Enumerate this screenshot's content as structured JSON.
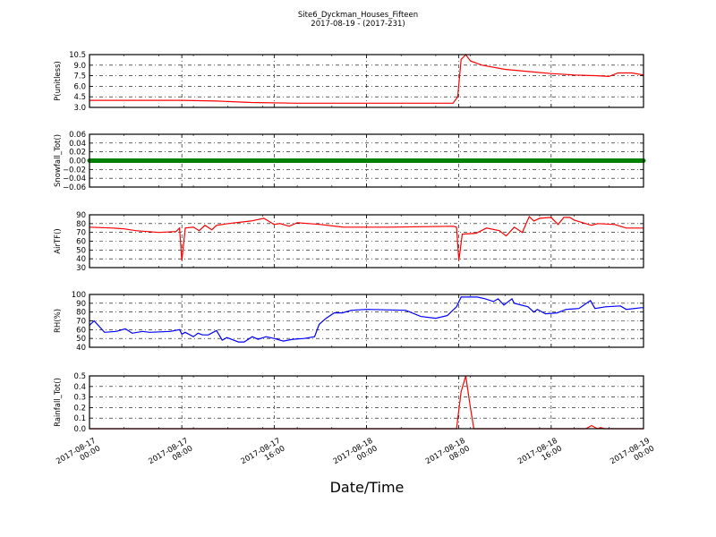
{
  "title": "Site6_Dyckman_Houses_Fifteen",
  "subtitle": "2017-08-19 - (2017-231)",
  "xlabel": "Date/Time",
  "x_range": [
    "2017-08-17 00:00",
    "2017-08-19 00:00"
  ],
  "x_ticks": [
    {
      "date": "2017-08-17 00:00",
      "label": [
        "2017-08-17",
        "00:00"
      ]
    },
    {
      "date": "2017-08-17 08:00",
      "label": [
        "2017-08-17",
        "08:00"
      ]
    },
    {
      "date": "2017-08-17 16:00",
      "label": [
        "2017-08-17",
        "16:00"
      ]
    },
    {
      "date": "2017-08-18 00:00",
      "label": [
        "2017-08-18",
        "00:00"
      ]
    },
    {
      "date": "2017-08-18 08:00",
      "label": [
        "2017-08-18",
        "08:00"
      ]
    },
    {
      "date": "2017-08-18 16:00",
      "label": [
        "2017-08-18",
        "16:00"
      ]
    },
    {
      "date": "2017-08-19 00:00",
      "label": [
        "2017-08-19",
        "00:00"
      ]
    }
  ],
  "chart_data": [
    {
      "type": "line",
      "ylabel": "P(unitless)",
      "ylim": [
        3.0,
        10.5
      ],
      "grid": true,
      "color": "#ff0000",
      "yticks": [
        "3.0",
        "4.5",
        "6.0",
        "7.5",
        "9.0",
        "10.5"
      ],
      "points": [
        [
          "2017-08-17 00:00",
          4.0
        ],
        [
          "2017-08-17 08:00",
          4.0
        ],
        [
          "2017-08-17 11:00",
          3.9
        ],
        [
          "2017-08-17 14:00",
          3.7
        ],
        [
          "2017-08-17 18:00",
          3.6
        ],
        [
          "2017-08-18 07:30",
          3.6
        ],
        [
          "2017-08-18 07:54",
          4.5
        ],
        [
          "2017-08-18 08:12",
          9.8
        ],
        [
          "2017-08-18 08:36",
          10.5
        ],
        [
          "2017-08-18 09:00",
          9.6
        ],
        [
          "2017-08-18 10:00",
          9.0
        ],
        [
          "2017-08-18 11:00",
          8.7
        ],
        [
          "2017-08-18 12:00",
          8.4
        ],
        [
          "2017-08-18 14:00",
          8.1
        ],
        [
          "2017-08-18 16:00",
          7.8
        ],
        [
          "2017-08-18 18:00",
          7.6
        ],
        [
          "2017-08-18 20:00",
          7.5
        ],
        [
          "2017-08-18 21:00",
          7.4
        ],
        [
          "2017-08-18 21:48",
          7.9
        ],
        [
          "2017-08-18 23:00",
          7.9
        ],
        [
          "2017-08-19 00:00",
          7.6
        ]
      ]
    },
    {
      "type": "line",
      "ylabel": "Snowfall_Tot()",
      "ylim": [
        -0.06,
        0.06
      ],
      "grid": true,
      "color": "#008000",
      "markers": true,
      "yticks": [
        "−0.06",
        "−0.04",
        "−0.02",
        "0.00",
        "0.02",
        "0.04",
        "0.06"
      ],
      "points": [
        [
          "2017-08-17 00:00",
          0
        ],
        [
          "2017-08-19 00:00",
          0
        ]
      ]
    },
    {
      "type": "line",
      "ylabel": "AirTF()",
      "ylim": [
        30,
        90
      ],
      "grid": true,
      "color": "#ff0000",
      "yticks": [
        "30",
        "40",
        "50",
        "60",
        "70",
        "80",
        "90"
      ],
      "points": [
        [
          "2017-08-17 00:00",
          76
        ],
        [
          "2017-08-17 02:00",
          75
        ],
        [
          "2017-08-17 03:00",
          74
        ],
        [
          "2017-08-17 04:00",
          72
        ],
        [
          "2017-08-17 06:00",
          70
        ],
        [
          "2017-08-17 07:30",
          71
        ],
        [
          "2017-08-17 07:48",
          75
        ],
        [
          "2017-08-17 08:00",
          38
        ],
        [
          "2017-08-17 08:18",
          75
        ],
        [
          "2017-08-17 09:00",
          76
        ],
        [
          "2017-08-17 09:30",
          72
        ],
        [
          "2017-08-17 10:00",
          78
        ],
        [
          "2017-08-17 10:36",
          73
        ],
        [
          "2017-08-17 11:00",
          78
        ],
        [
          "2017-08-17 12:00",
          80
        ],
        [
          "2017-08-17 14:00",
          83
        ],
        [
          "2017-08-17 15:06",
          86
        ],
        [
          "2017-08-17 16:00",
          79
        ],
        [
          "2017-08-17 16:30",
          80
        ],
        [
          "2017-08-17 17:18",
          77
        ],
        [
          "2017-08-17 18:00",
          81
        ],
        [
          "2017-08-17 20:00",
          79
        ],
        [
          "2017-08-17 22:00",
          76
        ],
        [
          "2017-08-18 02:00",
          76
        ],
        [
          "2017-08-18 07:30",
          77
        ],
        [
          "2017-08-18 07:48",
          76
        ],
        [
          "2017-08-18 08:00",
          38
        ],
        [
          "2017-08-18 08:18",
          68
        ],
        [
          "2017-08-18 09:30",
          69
        ],
        [
          "2017-08-18 10:24",
          75
        ],
        [
          "2017-08-18 11:30",
          72
        ],
        [
          "2017-08-18 12:06",
          66
        ],
        [
          "2017-08-18 12:48",
          76
        ],
        [
          "2017-08-18 13:30",
          70
        ],
        [
          "2017-08-18 14:06",
          88
        ],
        [
          "2017-08-18 14:30",
          83
        ],
        [
          "2017-08-18 15:00",
          86
        ],
        [
          "2017-08-18 16:00",
          87
        ],
        [
          "2017-08-18 16:36",
          79
        ],
        [
          "2017-08-18 17:06",
          87
        ],
        [
          "2017-08-18 17:36",
          87
        ],
        [
          "2017-08-18 18:00",
          84
        ],
        [
          "2017-08-18 18:30",
          82
        ],
        [
          "2017-08-18 19:30",
          78
        ],
        [
          "2017-08-18 20:00",
          80
        ],
        [
          "2017-08-18 21:30",
          79
        ],
        [
          "2017-08-18 22:30",
          75
        ],
        [
          "2017-08-19 00:00",
          75
        ]
      ]
    },
    {
      "type": "line",
      "ylabel": "RH(%)",
      "ylim": [
        40,
        100
      ],
      "grid": true,
      "color": "#0000ff",
      "yticks": [
        "40",
        "50",
        "60",
        "70",
        "80",
        "90",
        "100"
      ],
      "points": [
        [
          "2017-08-17 00:00",
          65
        ],
        [
          "2017-08-17 00:24",
          70
        ],
        [
          "2017-08-17 01:18",
          57
        ],
        [
          "2017-08-17 02:18",
          58
        ],
        [
          "2017-08-17 03:06",
          61
        ],
        [
          "2017-08-17 03:42",
          56
        ],
        [
          "2017-08-17 04:36",
          58
        ],
        [
          "2017-08-17 05:12",
          57
        ],
        [
          "2017-08-17 07:00",
          58
        ],
        [
          "2017-08-17 07:48",
          60
        ],
        [
          "2017-08-17 08:00",
          55
        ],
        [
          "2017-08-17 08:18",
          57
        ],
        [
          "2017-08-17 09:00",
          52
        ],
        [
          "2017-08-17 09:24",
          56
        ],
        [
          "2017-08-17 09:48",
          54
        ],
        [
          "2017-08-17 10:18",
          54
        ],
        [
          "2017-08-17 11:00",
          59
        ],
        [
          "2017-08-17 11:30",
          48
        ],
        [
          "2017-08-17 11:54",
          51
        ],
        [
          "2017-08-17 12:54",
          46
        ],
        [
          "2017-08-17 13:24",
          46
        ],
        [
          "2017-08-17 14:06",
          52
        ],
        [
          "2017-08-17 14:36",
          49
        ],
        [
          "2017-08-17 15:18",
          52
        ],
        [
          "2017-08-17 16:00",
          50
        ],
        [
          "2017-08-17 16:48",
          47
        ],
        [
          "2017-08-17 17:36",
          49
        ],
        [
          "2017-08-17 18:36",
          50
        ],
        [
          "2017-08-17 19:30",
          52
        ],
        [
          "2017-08-17 19:54",
          66
        ],
        [
          "2017-08-17 20:30",
          73
        ],
        [
          "2017-08-17 21:12",
          79
        ],
        [
          "2017-08-17 21:54",
          79
        ],
        [
          "2017-08-17 22:42",
          82
        ],
        [
          "2017-08-18 00:00",
          83
        ],
        [
          "2017-08-18 03:24",
          82
        ],
        [
          "2017-08-18 04:42",
          75
        ],
        [
          "2017-08-18 06:00",
          73
        ],
        [
          "2017-08-18 07:00",
          76
        ],
        [
          "2017-08-18 07:48",
          86
        ],
        [
          "2017-08-18 08:12",
          97
        ],
        [
          "2017-08-18 09:36",
          97
        ],
        [
          "2017-08-18 10:18",
          95
        ],
        [
          "2017-08-18 11:00",
          92
        ],
        [
          "2017-08-18 11:24",
          95
        ],
        [
          "2017-08-18 11:54",
          88
        ],
        [
          "2017-08-18 12:36",
          95
        ],
        [
          "2017-08-18 12:48",
          90
        ],
        [
          "2017-08-18 14:00",
          86
        ],
        [
          "2017-08-18 14:30",
          80
        ],
        [
          "2017-08-18 14:48",
          83
        ],
        [
          "2017-08-18 15:30",
          78
        ],
        [
          "2017-08-18 16:30",
          79
        ],
        [
          "2017-08-18 17:18",
          83
        ],
        [
          "2017-08-18 18:24",
          84
        ],
        [
          "2017-08-18 19:24",
          93
        ],
        [
          "2017-08-18 19:48",
          84
        ],
        [
          "2017-08-18 20:42",
          86
        ],
        [
          "2017-08-18 22:00",
          87
        ],
        [
          "2017-08-18 22:30",
          83
        ],
        [
          "2017-08-18 23:48",
          85
        ],
        [
          "2017-08-19 00:00",
          85
        ]
      ]
    },
    {
      "type": "line",
      "ylabel": "Rainfall_Tot()",
      "ylim": [
        0.0,
        0.5
      ],
      "grid": true,
      "color": "#ff0000",
      "yticks": [
        "0.0",
        "0.1",
        "0.2",
        "0.3",
        "0.4",
        "0.5"
      ],
      "points": [
        [
          "2017-08-17 00:00",
          0
        ],
        [
          "2017-08-18 07:48",
          0
        ],
        [
          "2017-08-18 08:12",
          0.35
        ],
        [
          "2017-08-18 08:36",
          0.5
        ],
        [
          "2017-08-18 09:00",
          0.2
        ],
        [
          "2017-08-18 09:18",
          0
        ],
        [
          "2017-08-18 19:00",
          0
        ],
        [
          "2017-08-18 19:30",
          0.03
        ],
        [
          "2017-08-18 20:00",
          0
        ],
        [
          "2017-08-18 20:18",
          0.01
        ],
        [
          "2017-08-18 20:36",
          0
        ],
        [
          "2017-08-19 00:00",
          0
        ]
      ]
    }
  ]
}
